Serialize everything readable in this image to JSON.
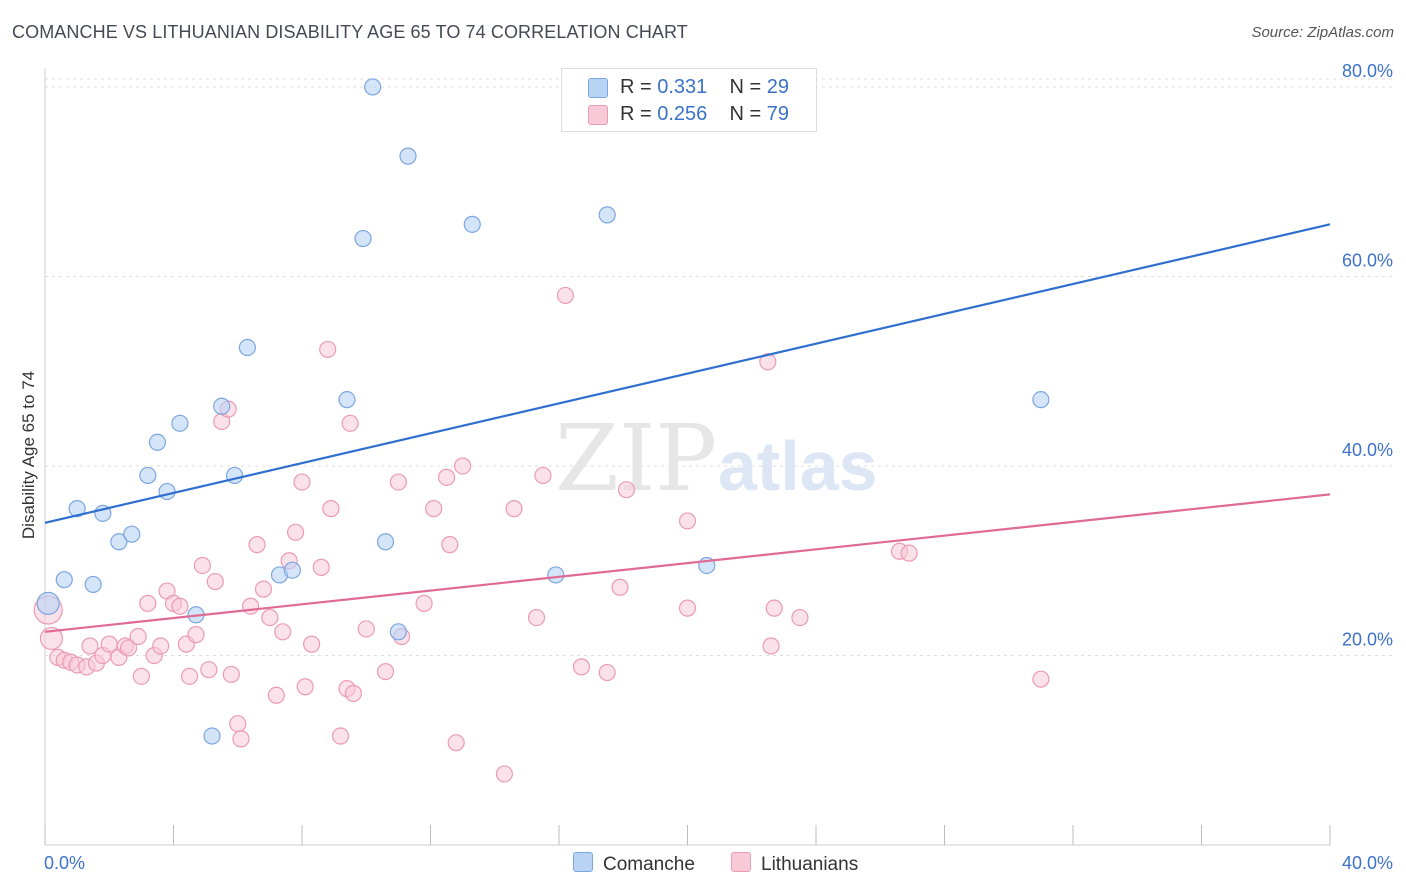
{
  "header": {
    "title": "COMANCHE VS LITHUANIAN DISABILITY AGE 65 TO 74 CORRELATION CHART",
    "source": "Source: ZipAtlas.com"
  },
  "watermark": {
    "part1": "ZIP",
    "part2": "atlas"
  },
  "legend": {
    "rows": [
      {
        "r_label": "R = ",
        "r_value": "0.331",
        "n_label": "N = ",
        "n_value": "29"
      },
      {
        "r_label": "R = ",
        "r_value": "0.256",
        "n_label": "N = ",
        "n_value": "79"
      }
    ]
  },
  "colors": {
    "comanche_fill": "#b9d3f5",
    "comanche_stroke": "#7ba6e0",
    "comanche_line": "#2f6fcf",
    "lith_fill": "#f8c9d7",
    "lith_stroke": "#ec9bb4",
    "lith_line": "#e06a96",
    "axis_label": "#3c72c8",
    "grid": "#dddddd"
  },
  "chart_data": {
    "type": "scatter",
    "title": "COMANCHE VS LITHUANIAN DISABILITY AGE 65 TO 74 CORRELATION CHART",
    "xlabel": "",
    "ylabel": "Disability Age 65 to 74",
    "xlim": [
      0,
      40
    ],
    "ylim": [
      0,
      82
    ],
    "x_ticks": [
      0,
      4,
      8,
      12,
      16,
      20,
      24,
      28,
      32,
      36,
      40
    ],
    "x_tick_labels": [
      "0.0%",
      "40.0%"
    ],
    "y_ticks": [
      20,
      40,
      60,
      80
    ],
    "y_tick_labels": [
      "20.0%",
      "40.0%",
      "60.0%",
      "80.0%"
    ],
    "grid": "horizontal dashed",
    "legend_position": "top-center",
    "series": [
      {
        "name": "Comanche",
        "trend": {
          "x": [
            0,
            40
          ],
          "y": [
            34.0,
            65.5
          ]
        },
        "points": [
          [
            0.1,
            25.5
          ],
          [
            0.6,
            28.0
          ],
          [
            1.0,
            35.5
          ],
          [
            1.5,
            27.5
          ],
          [
            1.8,
            35.0
          ],
          [
            2.3,
            32.0
          ],
          [
            2.7,
            32.8
          ],
          [
            3.2,
            39.0
          ],
          [
            3.5,
            42.5
          ],
          [
            3.8,
            37.3
          ],
          [
            4.2,
            44.5
          ],
          [
            4.7,
            24.3
          ],
          [
            5.2,
            11.5
          ],
          [
            5.5,
            46.3
          ],
          [
            5.9,
            39.0
          ],
          [
            6.3,
            52.5
          ],
          [
            7.3,
            28.5
          ],
          [
            7.7,
            29.0
          ],
          [
            9.4,
            47.0
          ],
          [
            9.9,
            64.0
          ],
          [
            10.2,
            80.0
          ],
          [
            10.6,
            32.0
          ],
          [
            11.0,
            22.5
          ],
          [
            11.3,
            72.7
          ],
          [
            13.3,
            65.5
          ],
          [
            15.9,
            28.5
          ],
          [
            17.5,
            66.5
          ],
          [
            20.6,
            29.5
          ],
          [
            31.0,
            47.0
          ]
        ]
      },
      {
        "name": "Lithuanians",
        "trend": {
          "x": [
            0,
            40
          ],
          "y": [
            22.5,
            37.0
          ]
        },
        "points": [
          [
            0.1,
            24.8
          ],
          [
            0.2,
            21.8
          ],
          [
            0.4,
            19.8
          ],
          [
            0.6,
            19.5
          ],
          [
            0.8,
            19.3
          ],
          [
            1.0,
            19.0
          ],
          [
            1.3,
            18.8
          ],
          [
            1.4,
            21.0
          ],
          [
            1.6,
            19.2
          ],
          [
            1.8,
            20.0
          ],
          [
            2.0,
            21.2
          ],
          [
            2.3,
            19.8
          ],
          [
            2.5,
            21.0
          ],
          [
            2.6,
            20.8
          ],
          [
            2.9,
            22.0
          ],
          [
            3.0,
            17.8
          ],
          [
            3.2,
            25.5
          ],
          [
            3.4,
            20.0
          ],
          [
            3.6,
            21.0
          ],
          [
            3.8,
            26.8
          ],
          [
            4.0,
            25.5
          ],
          [
            4.2,
            25.2
          ],
          [
            4.4,
            21.2
          ],
          [
            4.5,
            17.8
          ],
          [
            4.7,
            22.2
          ],
          [
            4.9,
            29.5
          ],
          [
            5.1,
            18.5
          ],
          [
            5.3,
            27.8
          ],
          [
            5.5,
            44.7
          ],
          [
            5.7,
            46.0
          ],
          [
            5.8,
            18.0
          ],
          [
            6.0,
            12.8
          ],
          [
            6.1,
            11.2
          ],
          [
            6.4,
            25.2
          ],
          [
            6.6,
            31.7
          ],
          [
            6.8,
            27.0
          ],
          [
            7.0,
            24.0
          ],
          [
            7.2,
            15.8
          ],
          [
            7.4,
            22.5
          ],
          [
            7.6,
            30.0
          ],
          [
            7.8,
            33.0
          ],
          [
            8.0,
            38.3
          ],
          [
            8.1,
            16.7
          ],
          [
            8.3,
            21.2
          ],
          [
            8.6,
            29.3
          ],
          [
            8.8,
            52.3
          ],
          [
            8.9,
            35.5
          ],
          [
            9.2,
            11.5
          ],
          [
            9.4,
            16.5
          ],
          [
            9.5,
            44.5
          ],
          [
            9.6,
            16.0
          ],
          [
            10.0,
            22.8
          ],
          [
            10.6,
            18.3
          ],
          [
            11.0,
            38.3
          ],
          [
            11.1,
            22.0
          ],
          [
            11.8,
            25.5
          ],
          [
            12.1,
            35.5
          ],
          [
            12.5,
            38.8
          ],
          [
            12.6,
            31.7
          ],
          [
            12.8,
            10.8
          ],
          [
            13.0,
            40.0
          ],
          [
            14.3,
            7.5
          ],
          [
            14.6,
            35.5
          ],
          [
            15.3,
            24.0
          ],
          [
            15.5,
            39.0
          ],
          [
            16.2,
            58.0
          ],
          [
            16.7,
            18.8
          ],
          [
            17.5,
            18.2
          ],
          [
            17.9,
            27.2
          ],
          [
            18.1,
            37.5
          ],
          [
            20.0,
            34.2
          ],
          [
            20.0,
            25.0
          ],
          [
            22.5,
            51.0
          ],
          [
            22.6,
            21.0
          ],
          [
            22.7,
            25.0
          ],
          [
            23.5,
            24.0
          ],
          [
            26.6,
            31.0
          ],
          [
            26.9,
            30.8
          ],
          [
            31.0,
            17.5
          ]
        ]
      }
    ]
  }
}
